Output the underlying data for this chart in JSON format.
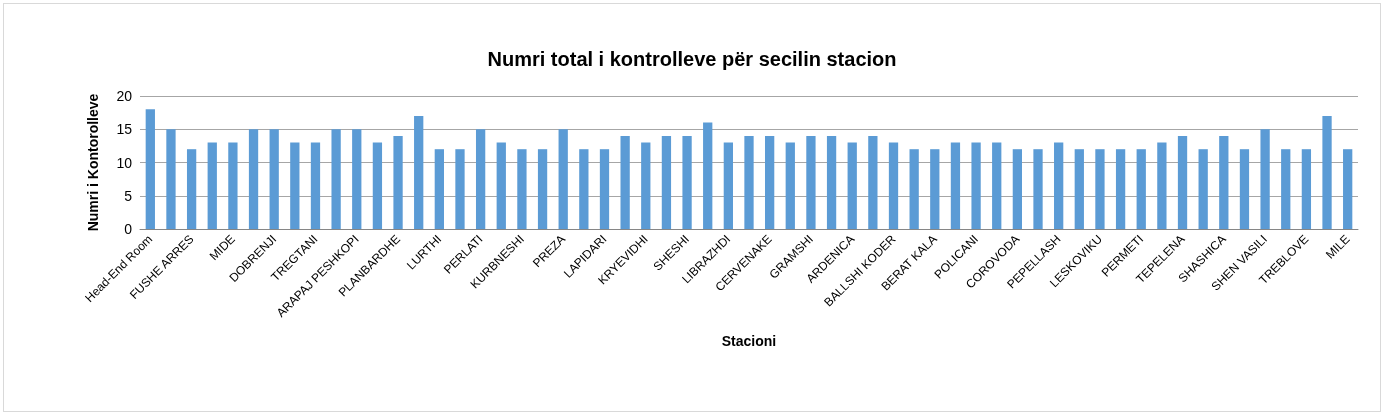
{
  "chart_data": {
    "type": "bar",
    "title": "Numri total i kontrolleve për secilin stacion",
    "xlabel": "Stacioni",
    "ylabel": "Numri i Kontorolleve",
    "categories": [
      "Head-End Room",
      null,
      "FUSHE ARRES",
      null,
      "MIDE",
      null,
      "DOBRENJI",
      null,
      "TREGTANI",
      null,
      "ARAPAJ PESHKOPI",
      null,
      "PLANBARDHE",
      null,
      "LURTHI",
      null,
      "PERLATI",
      null,
      "KURBNESHI",
      null,
      "PREZA",
      null,
      "LAPIDARI",
      null,
      "KRYEVIDHI",
      null,
      "SHESHI",
      null,
      "LIBRAZHDI",
      null,
      "CERVENAKE",
      null,
      "GRAMSHI",
      null,
      "ARDENICA",
      null,
      "BALLSHI KODER",
      null,
      "BERAT KALA",
      null,
      "POLICANI",
      null,
      "COROVODA",
      null,
      "PEPELLASH",
      null,
      "LESKOVIKU",
      null,
      "PERMETI",
      null,
      "TEPELENA",
      null,
      "SHASHICA",
      null,
      "SHEN VASILI",
      null,
      "TREBLOVE",
      null,
      "MILE"
    ],
    "values": [
      18,
      15,
      12,
      13,
      13,
      15,
      15,
      13,
      13,
      15,
      15,
      13,
      14,
      17,
      12,
      12,
      15,
      13,
      12,
      12,
      15,
      12,
      12,
      14,
      13,
      14,
      14,
      16,
      13,
      14,
      14,
      13,
      14,
      14,
      13,
      14,
      13,
      12,
      12,
      13,
      13,
      13,
      12,
      12,
      13,
      12,
      12,
      12,
      12,
      13,
      14,
      12,
      14,
      12,
      15,
      12,
      12,
      17,
      12
    ],
    "color": "#5b9bd5",
    "ylim": [
      0,
      20
    ],
    "yticks": [
      0,
      5,
      10,
      15,
      20
    ],
    "grid": "y"
  }
}
